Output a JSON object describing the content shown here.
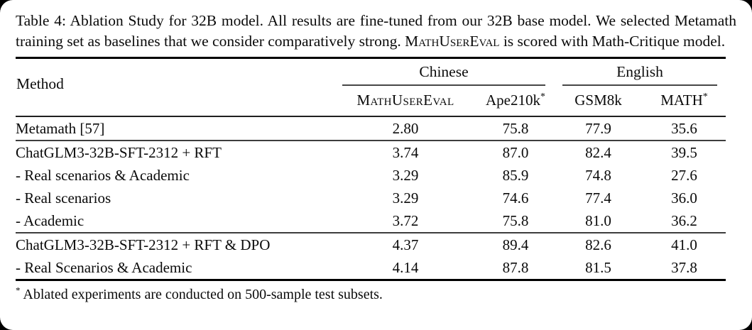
{
  "page": {
    "caption": {
      "before": "Table 4: Ablation Study for 32B model. All results are fine-tuned from our 32B base model. We selected Metamath training set as baselines that we consider comparatively strong. ",
      "smallcaps": "MathUserEval",
      "after": " is scored with Math-Critique model."
    },
    "table": {
      "method_header": "Method",
      "groups": [
        {
          "label": "Chinese"
        },
        {
          "label": "English"
        }
      ],
      "columns": [
        {
          "label": "MathUserEval",
          "sup": ""
        },
        {
          "label": "Ape210k",
          "sup": "*"
        },
        {
          "label": "GSM8k",
          "sup": ""
        },
        {
          "label": "MATH",
          "sup": "*"
        }
      ],
      "sections": [
        {
          "rows": [
            {
              "method": "Metamath [57]",
              "values": [
                "2.80",
                "75.8",
                "77.9",
                "35.6"
              ]
            }
          ]
        },
        {
          "rows": [
            {
              "method": "ChatGLM3-32B-SFT-2312 + RFT",
              "values": [
                "3.74",
                "87.0",
                "82.4",
                "39.5"
              ]
            },
            {
              "method": "- Real scenarios & Academic",
              "values": [
                "3.29",
                "85.9",
                "74.8",
                "27.6"
              ]
            },
            {
              "method": "- Real scenarios",
              "values": [
                "3.29",
                "74.6",
                "77.4",
                "36.0"
              ]
            },
            {
              "method": "- Academic",
              "values": [
                "3.72",
                "75.8",
                "81.0",
                "36.2"
              ]
            }
          ]
        },
        {
          "rows": [
            {
              "method": "ChatGLM3-32B-SFT-2312 + RFT & DPO",
              "values": [
                "4.37",
                "89.4",
                "82.6",
                "41.0"
              ]
            },
            {
              "method": "- Real Scenarios & Academic",
              "values": [
                "4.14",
                "87.8",
                "81.5",
                "37.8"
              ]
            }
          ]
        }
      ],
      "footnote": {
        "sup": "*",
        "text": "Ablated experiments are conducted on 500-sample test subsets."
      }
    },
    "colors": {
      "page_bg": "#ffffff",
      "outside_bg": "#000000",
      "text": "#0a0a0a",
      "rule_heavy": "#000000",
      "rule_light": "#474747"
    }
  }
}
